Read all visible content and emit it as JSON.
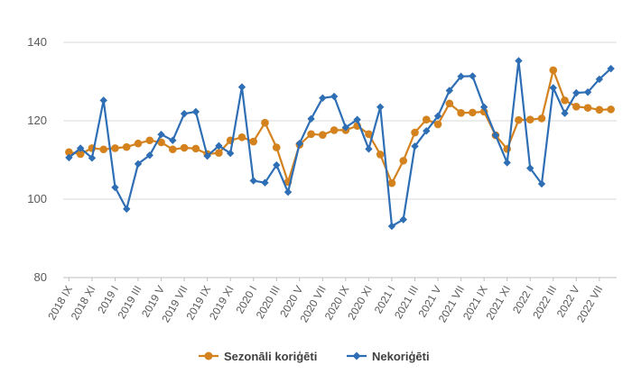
{
  "chart_data": {
    "type": "line",
    "title": "",
    "xlabel": "",
    "ylabel": "",
    "ylim": [
      80,
      140
    ],
    "yticks": [
      80,
      100,
      120,
      140
    ],
    "grid": true,
    "legend_position": "bottom",
    "x_tick_labels": [
      "2018 IX",
      "2018 XI",
      "2019 I",
      "2019 III",
      "2019 V",
      "2019 VII",
      "2019 IX",
      "2019 XI",
      "2020 I",
      "2020 III",
      "2020 V",
      "2020 VII",
      "2020 IX",
      "2020 XI",
      "2021 I",
      "2021 III",
      "2021 V",
      "2021 VII",
      "2021 IX",
      "2021 XI",
      "2022 I",
      "2022 III",
      "2022 V",
      "2022 VII"
    ],
    "x": [
      "2018 IX",
      "2018 X",
      "2018 XI",
      "2018 XII",
      "2019 I",
      "2019 II",
      "2019 III",
      "2019 IV",
      "2019 V",
      "2019 VI",
      "2019 VII",
      "2019 VIII",
      "2019 IX",
      "2019 X",
      "2019 XI",
      "2019 XII",
      "2020 I",
      "2020 II",
      "2020 III",
      "2020 IV",
      "2020 V",
      "2020 VI",
      "2020 VII",
      "2020 VIII",
      "2020 IX",
      "2020 X",
      "2020 XI",
      "2020 XII",
      "2021 I",
      "2021 II",
      "2021 III",
      "2021 IV",
      "2021 V",
      "2021 VI",
      "2021 VII",
      "2021 VIII",
      "2021 IX",
      "2021 X",
      "2021 XI",
      "2021 XII",
      "2022 I",
      "2022 II",
      "2022 III",
      "2022 IV",
      "2022 V",
      "2022 VI",
      "2022 VII",
      "2022 VIII"
    ],
    "series": [
      {
        "name": "Sezonāli koriģēti",
        "color": "#d4821e",
        "marker": "circle",
        "values": [
          112.0,
          111.5,
          113.0,
          112.7,
          113.0,
          113.3,
          114.2,
          115.0,
          114.5,
          112.7,
          113.1,
          112.9,
          111.5,
          111.8,
          115.0,
          115.8,
          114.7,
          119.5,
          113.2,
          104.4,
          113.9,
          116.6,
          116.4,
          117.6,
          117.6,
          118.7,
          116.6,
          111.4,
          104.1,
          109.8,
          117.0,
          120.3,
          119.1,
          124.4,
          122.0,
          122.1,
          122.3,
          116.3,
          112.8,
          120.2,
          120.3,
          120.6,
          132.9,
          125.2,
          123.6,
          123.3,
          122.8,
          122.9
        ]
      },
      {
        "name": "Nekoriģēti",
        "color": "#2e6eb5",
        "marker": "diamond",
        "values": [
          110.6,
          113.0,
          110.5,
          125.2,
          103.0,
          97.5,
          109.0,
          111.2,
          116.5,
          115.0,
          121.8,
          122.3,
          111.0,
          113.6,
          111.7,
          128.6,
          104.7,
          104.2,
          108.7,
          101.8,
          114.2,
          120.5,
          125.8,
          126.2,
          118.3,
          120.3,
          112.8,
          123.5,
          93.1,
          94.8,
          113.5,
          117.4,
          121.2,
          127.7,
          131.3,
          131.4,
          123.5,
          116.3,
          109.3,
          135.3,
          107.9,
          103.9,
          128.4,
          121.9,
          127.1,
          127.3,
          130.6,
          133.3
        ]
      }
    ]
  }
}
